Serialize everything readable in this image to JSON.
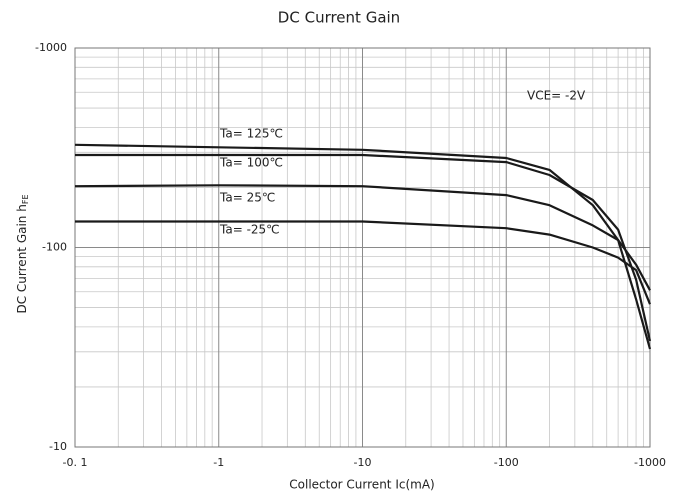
{
  "chart_data": {
    "type": "line",
    "title": "DC Current Gain",
    "x_label": "Collector Current   Ic(mA)",
    "y_label": "DC Current Gain  h",
    "y_label_subscript": "FE",
    "xscale": "log",
    "yscale": "log",
    "grid": true,
    "minor_grid": true,
    "xlim": [
      -0.1,
      -1000
    ],
    "xticks": [
      {
        "value": -0.1,
        "label": "-0. 1"
      },
      -1,
      -10,
      -100,
      -1000
    ],
    "ylim": [
      -10,
      -1000
    ],
    "yticks": [
      -1000,
      -100,
      -10
    ],
    "x": [
      -0.1,
      -1,
      -10,
      -100,
      -200,
      -400,
      -600,
      -800,
      -1000
    ],
    "series": [
      {
        "name": "Ta= 125℃",
        "color": "#1a1a1a",
        "values": [
          -327,
          -318,
          -309,
          -281,
          -245,
          -163,
          -109,
          -55,
          -31
        ]
      },
      {
        "name": "Ta= 100℃",
        "color": "#1a1a1a",
        "values": [
          -291,
          -291,
          -291,
          -268,
          -231,
          -173,
          -123,
          -69,
          -34
        ]
      },
      {
        "name": "Ta= 25℃",
        "color": "#1a1a1a",
        "values": [
          -203,
          -205,
          -203,
          -183,
          -163,
          -129,
          -109,
          -82,
          -61
        ]
      },
      {
        "name": "Ta= -25℃",
        "color": "#1a1a1a",
        "values": [
          -135,
          -135,
          -135,
          -125,
          -116,
          -100,
          -89,
          -77,
          -52
        ]
      }
    ],
    "annotations": [
      "VCE= -2V"
    ]
  }
}
